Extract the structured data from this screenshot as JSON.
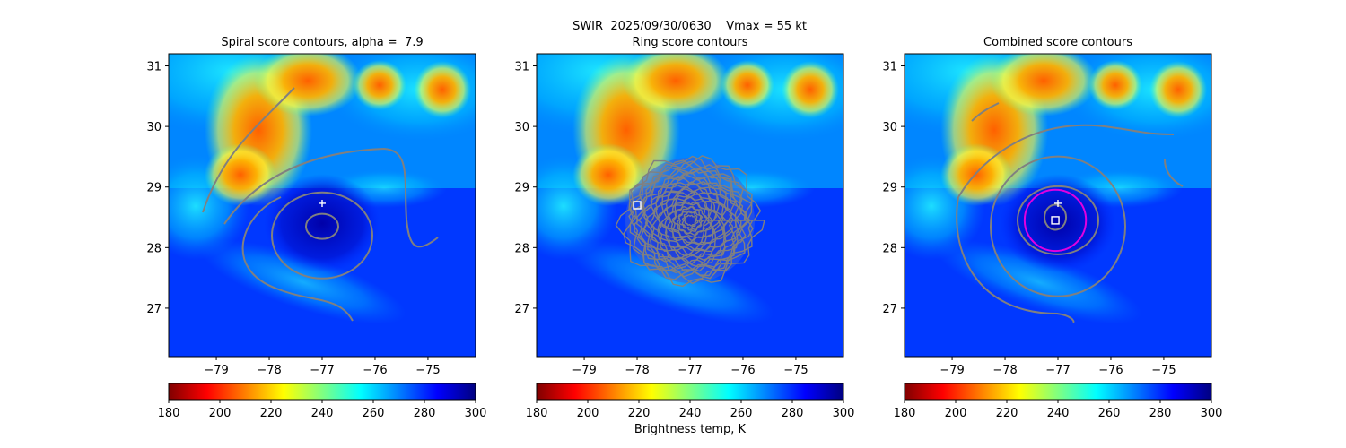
{
  "figure": {
    "title_line1": "SWIR  2025/09/30/0630    Vmax = 55 kt",
    "colorbar_label": "Brightness temp, K",
    "colormap": [
      "#800000",
      "#ff0000",
      "#ff8000",
      "#ffff00",
      "#80ff80",
      "#00ffff",
      "#0080ff",
      "#0000ff",
      "#000080"
    ]
  },
  "chart_data": [
    {
      "type": "heatmap",
      "title": "Spiral score contours, alpha =  7.9",
      "xlabel": "",
      "ylabel": "",
      "xlim": [
        -79.9,
        -74.1
      ],
      "ylim": [
        26.2,
        31.2
      ],
      "xticks": [
        "−79",
        "−78",
        "−77",
        "−76",
        "−75"
      ],
      "yticks": [
        "27",
        "28",
        "29",
        "30",
        "31"
      ],
      "colorbar": {
        "vmin": 180,
        "vmax": 300,
        "ticks": [
          "180",
          "200",
          "220",
          "240",
          "260",
          "280",
          "300"
        ]
      },
      "markers": [
        {
          "symbol": "plus",
          "lon": -77.0,
          "lat": 28.73,
          "color": "#ffffff"
        }
      ],
      "contour_color": "#808080"
    },
    {
      "type": "heatmap",
      "title": "Ring score contours",
      "xlabel": "",
      "ylabel": "",
      "xlim": [
        -79.9,
        -74.1
      ],
      "ylim": [
        26.2,
        31.2
      ],
      "xticks": [
        "−79",
        "−78",
        "−77",
        "−76",
        "−75"
      ],
      "yticks": [
        "27",
        "28",
        "29",
        "30",
        "31"
      ],
      "colorbar": {
        "vmin": 180,
        "vmax": 300,
        "ticks": [
          "180",
          "200",
          "220",
          "240",
          "260",
          "280",
          "300"
        ]
      },
      "markers": [
        {
          "symbol": "square",
          "lon": -78.0,
          "lat": 28.7,
          "color": "#ffffff"
        }
      ],
      "contour_color": "#808080"
    },
    {
      "type": "heatmap",
      "title": "Combined score contours",
      "xlabel": "",
      "ylabel": "",
      "xlim": [
        -79.9,
        -74.1
      ],
      "ylim": [
        26.2,
        31.2
      ],
      "xticks": [
        "−79",
        "−78",
        "−77",
        "−76",
        "−75"
      ],
      "yticks": [
        "27",
        "28",
        "29",
        "30",
        "31"
      ],
      "colorbar": {
        "vmin": 180,
        "vmax": 300,
        "ticks": [
          "180",
          "200",
          "220",
          "240",
          "260",
          "280",
          "300"
        ]
      },
      "markers": [
        {
          "symbol": "plus",
          "lon": -77.0,
          "lat": 28.73,
          "color": "#ffffff"
        },
        {
          "symbol": "square",
          "lon": -77.05,
          "lat": 28.45,
          "color": "#ffffff"
        }
      ],
      "circle": {
        "lon": -77.05,
        "lat": 28.45,
        "radius_deg": 0.58,
        "color": "#e000e0"
      },
      "contour_color": "#808080"
    }
  ]
}
